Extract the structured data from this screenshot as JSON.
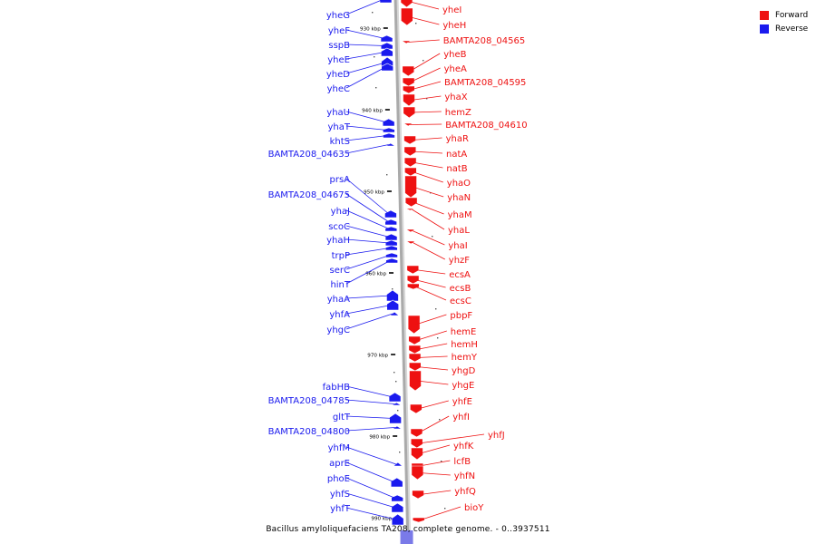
{
  "colors": {
    "forward": "#ee1111",
    "reverse": "#1a1aee",
    "backbone": "#aaaaaa",
    "tick": "#000000"
  },
  "legend": [
    {
      "label": "Forward",
      "color": "#ee1111"
    },
    {
      "label": "Reverse",
      "color": "#1a1aee"
    }
  ],
  "caption": "Bacillus amyloliquefaciens TA208, complete genome. - 0..3937511",
  "scale_ticks": [
    "930 kbp",
    "940 kbp",
    "950 kbp",
    "960 kbp",
    "970 kbp",
    "980 kbp",
    "990 kbp"
  ],
  "reverse_genes": [
    "yheG",
    "yheF",
    "sspB",
    "yheE",
    "yheD",
    "yheC",
    "yhaU",
    "yhaT",
    "khtS",
    "BAMTA208_04635",
    "prsA",
    "BAMTA208_04675",
    "yhaJ",
    "scoC",
    "yhaH",
    "trpP",
    "serC",
    "hinT",
    "yhaA",
    "yhfA",
    "yhgC",
    "fabHB",
    "BAMTA208_04785",
    "gltT",
    "BAMTA208_04800",
    "yhfM",
    "aprE",
    "phoE",
    "yhfS",
    "yhfT"
  ],
  "forward_genes": [
    "yheI",
    "yheH",
    "BAMTA208_04565",
    "yheB",
    "yheA",
    "BAMTA208_04595",
    "yhaX",
    "hemZ",
    "BAMTA208_04610",
    "yhaR",
    "natA",
    "natB",
    "yhaO",
    "yhaN",
    "yhaM",
    "yhaL",
    "yhaI",
    "yhzF",
    "ecsA",
    "ecsB",
    "ecsC",
    "pbpF",
    "hemE",
    "hemH",
    "hemY",
    "yhgD",
    "yhgE",
    "yhfE",
    "yhfI",
    "yhfJ",
    "yhfK",
    "lcfB",
    "yhfN",
    "yhfQ",
    "bioY"
  ]
}
